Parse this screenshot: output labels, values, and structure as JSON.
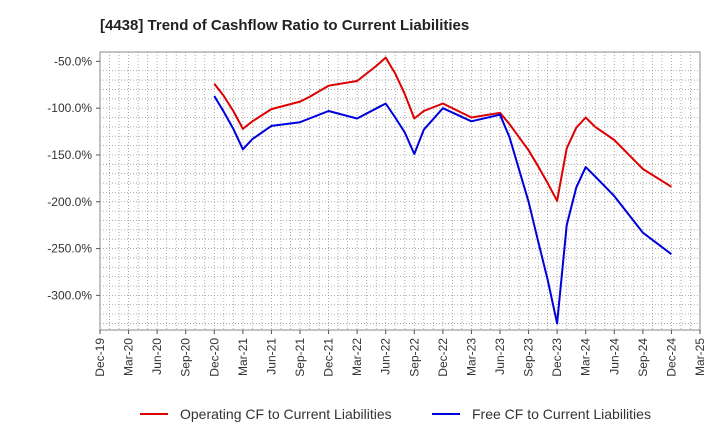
{
  "chart_data": {
    "type": "line",
    "title": "[4438]  Trend of Cashflow Ratio to Current Liabilities",
    "xlabel": "",
    "ylabel": "",
    "x_ticks": [
      "Dec-19",
      "Mar-20",
      "Jun-20",
      "Sep-20",
      "Dec-20",
      "Mar-21",
      "Jun-21",
      "Sep-21",
      "Dec-21",
      "Mar-22",
      "Jun-22",
      "Sep-22",
      "Dec-22",
      "Mar-23",
      "Jun-23",
      "Sep-23",
      "Dec-23",
      "Mar-24",
      "Jun-24",
      "Sep-24",
      "Dec-24",
      "Mar-25"
    ],
    "y_ticks": [
      -50,
      -100,
      -150,
      -200,
      -250,
      -300
    ],
    "y_tick_labels": [
      "-50.0%",
      "-100.0%",
      "-150.0%",
      "-200.0%",
      "-250.0%",
      "-300.0%"
    ],
    "ylim": [
      -337,
      -40
    ],
    "grid": true,
    "legend_position": "bottom",
    "series": [
      {
        "name": "Operating CF to Current Liabilities",
        "color": "#dd0000",
        "points": [
          [
            "Dec-20",
            -74
          ],
          [
            "Jan-21",
            -87
          ],
          [
            "Feb-21",
            -103
          ],
          [
            "Mar-21",
            -122
          ],
          [
            "Apr-21",
            -114
          ],
          [
            "Jun-21",
            -101
          ],
          [
            "Sep-21",
            -93
          ],
          [
            "Oct-21",
            -88
          ],
          [
            "Dec-21",
            -76
          ],
          [
            "Mar-22",
            -71
          ],
          [
            "May-22",
            -55
          ],
          [
            "Jun-22",
            -46
          ],
          [
            "Jul-22",
            -63
          ],
          [
            "Aug-22",
            -85
          ],
          [
            "Sep-22",
            -111
          ],
          [
            "Oct-22",
            -103
          ],
          [
            "Dec-22",
            -95
          ],
          [
            "Mar-23",
            -110
          ],
          [
            "Jun-23",
            -105
          ],
          [
            "Jul-23",
            -117
          ],
          [
            "Sep-23",
            -145
          ],
          [
            "Oct-23",
            -162
          ],
          [
            "Nov-23",
            -180
          ],
          [
            "Dec-23",
            -199
          ],
          [
            "Jan-24",
            -143
          ],
          [
            "Feb-24",
            -121
          ],
          [
            "Mar-24",
            -110
          ],
          [
            "Apr-24",
            -120
          ],
          [
            "Jun-24",
            -134
          ],
          [
            "Sep-24",
            -165
          ],
          [
            "Dec-24",
            -184
          ]
        ]
      },
      {
        "name": "Free CF to Current Liabilities",
        "color": "#0000dd",
        "points": [
          [
            "Dec-20",
            -87
          ],
          [
            "Jan-21",
            -104
          ],
          [
            "Feb-21",
            -122
          ],
          [
            "Mar-21",
            -144
          ],
          [
            "Apr-21",
            -133
          ],
          [
            "Jun-21",
            -119
          ],
          [
            "Sep-21",
            -115
          ],
          [
            "Dec-21",
            -103
          ],
          [
            "Mar-22",
            -111
          ],
          [
            "Jun-22",
            -95
          ],
          [
            "Jul-22",
            -110
          ],
          [
            "Aug-22",
            -126
          ],
          [
            "Sep-22",
            -149
          ],
          [
            "Oct-22",
            -123
          ],
          [
            "Dec-22",
            -100
          ],
          [
            "Mar-23",
            -114
          ],
          [
            "Jun-23",
            -107
          ],
          [
            "Jul-23",
            -131
          ],
          [
            "Sep-23",
            -200
          ],
          [
            "Oct-23",
            -242
          ],
          [
            "Nov-23",
            -283
          ],
          [
            "Dec-23",
            -330
          ],
          [
            "Jan-24",
            -225
          ],
          [
            "Feb-24",
            -185
          ],
          [
            "Mar-24",
            -163
          ],
          [
            "Apr-24",
            -173
          ],
          [
            "Jun-24",
            -194
          ],
          [
            "Sep-24",
            -233
          ],
          [
            "Dec-24",
            -256
          ]
        ]
      }
    ]
  }
}
